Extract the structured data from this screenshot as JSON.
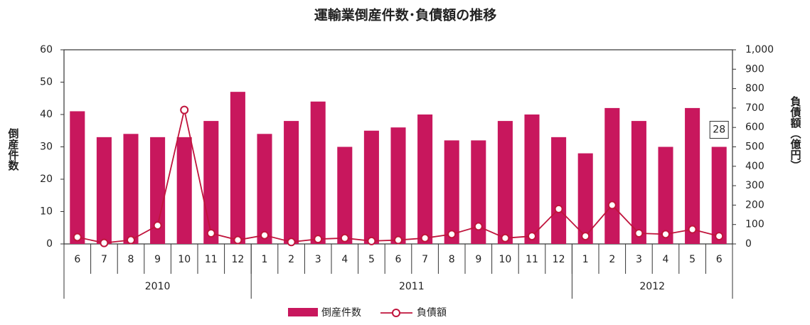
{
  "chart_data": {
    "type": "bar_line",
    "title": "運輸業倒産件数･負債額の推移",
    "y_label": "倒産件数",
    "y2_label": "負債額（億円）",
    "groups": [
      {
        "name": "2010",
        "categories": [
          "6",
          "7",
          "8",
          "9",
          "10",
          "11",
          "12"
        ]
      },
      {
        "name": "2011",
        "categories": [
          "1",
          "2",
          "3",
          "4",
          "5",
          "6",
          "7",
          "8",
          "9",
          "10",
          "11",
          "12"
        ]
      },
      {
        "name": "2012",
        "categories": [
          "1",
          "2",
          "3",
          "4",
          "5",
          "6"
        ]
      }
    ],
    "series": [
      {
        "name": "倒産件数",
        "type": "bar",
        "color": "#c8175d",
        "values": [
          41,
          33,
          34,
          33,
          33,
          38,
          47,
          34,
          38,
          44,
          30,
          35,
          36,
          40,
          32,
          32,
          38,
          40,
          33,
          28,
          42,
          38,
          30,
          42,
          30
        ]
      },
      {
        "name": "負債額",
        "type": "line",
        "axis": "y2",
        "color": "#c0143c",
        "values": [
          35,
          5,
          20,
          95,
          690,
          55,
          20,
          45,
          10,
          25,
          30,
          15,
          20,
          30,
          50,
          90,
          30,
          40,
          180,
          40,
          200,
          55,
          50,
          75,
          40
        ]
      }
    ],
    "annotation": "28",
    "ylim": [
      0,
      60
    ],
    "yticks": [
      0,
      10,
      20,
      30,
      40,
      50,
      60
    ],
    "y2lim": [
      0,
      1000
    ],
    "y2ticks": [
      0,
      100,
      200,
      300,
      400,
      500,
      600,
      700,
      800,
      900,
      {
        "value": 1000,
        "label": "1,000"
      }
    ],
    "legend": "bottom"
  }
}
